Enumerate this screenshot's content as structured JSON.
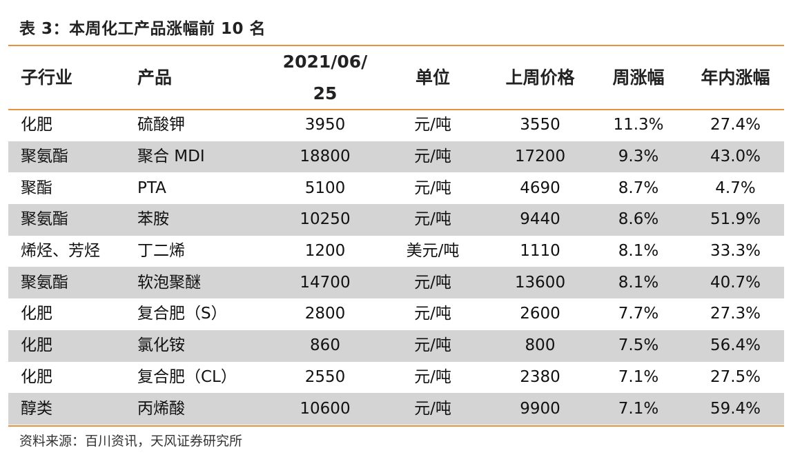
{
  "caption": "表 3：本周化工产品涨幅前 10 名",
  "headers": {
    "industry": "子行业",
    "product": "产品",
    "price_date_line1": "2021/06/",
    "price_date_line2": "25",
    "unit": "单位",
    "last_week_price": "上周价格",
    "weekly_change": "周涨幅",
    "ytd_change": "年内涨幅"
  },
  "rows": [
    {
      "industry": "化肥",
      "product": "硫酸钾",
      "price": "3950",
      "unit": "元/吨",
      "last_week": "3550",
      "weekly": "11.3%",
      "ytd": "27.4%"
    },
    {
      "industry": "聚氨酯",
      "product": "聚合 MDI",
      "price": "18800",
      "unit": "元/吨",
      "last_week": "17200",
      "weekly": "9.3%",
      "ytd": "43.0%"
    },
    {
      "industry": "聚酯",
      "product": "PTA",
      "price": "5100",
      "unit": "元/吨",
      "last_week": "4690",
      "weekly": "8.7%",
      "ytd": "4.7%"
    },
    {
      "industry": "聚氨酯",
      "product": "苯胺",
      "price": "10250",
      "unit": "元/吨",
      "last_week": "9440",
      "weekly": "8.6%",
      "ytd": "51.9%"
    },
    {
      "industry": "烯烃、芳烃",
      "product": "丁二烯",
      "price": "1200",
      "unit": "美元/吨",
      "last_week": "1110",
      "weekly": "8.1%",
      "ytd": "33.3%"
    },
    {
      "industry": "聚氨酯",
      "product": "软泡聚醚",
      "price": "14700",
      "unit": "元/吨",
      "last_week": "13600",
      "weekly": "8.1%",
      "ytd": "40.7%"
    },
    {
      "industry": "化肥",
      "product": "复合肥（S）",
      "price": "2800",
      "unit": "元/吨",
      "last_week": "2600",
      "weekly": "7.7%",
      "ytd": "27.3%"
    },
    {
      "industry": "化肥",
      "product": "氯化铵",
      "price": "860",
      "unit": "元/吨",
      "last_week": "800",
      "weekly": "7.5%",
      "ytd": "56.4%"
    },
    {
      "industry": "化肥",
      "product": "复合肥（CL）",
      "price": "2550",
      "unit": "元/吨",
      "last_week": "2380",
      "weekly": "7.1%",
      "ytd": "27.5%"
    },
    {
      "industry": "醇类",
      "product": "丙烯酸",
      "price": "10600",
      "unit": "元/吨",
      "last_week": "9900",
      "weekly": "7.1%",
      "ytd": "59.4%"
    }
  ],
  "source": "资料来源：百川资讯，天风证券研究所",
  "colors": {
    "rule": "#e8913c",
    "row_shade": "#d4d4d4"
  }
}
